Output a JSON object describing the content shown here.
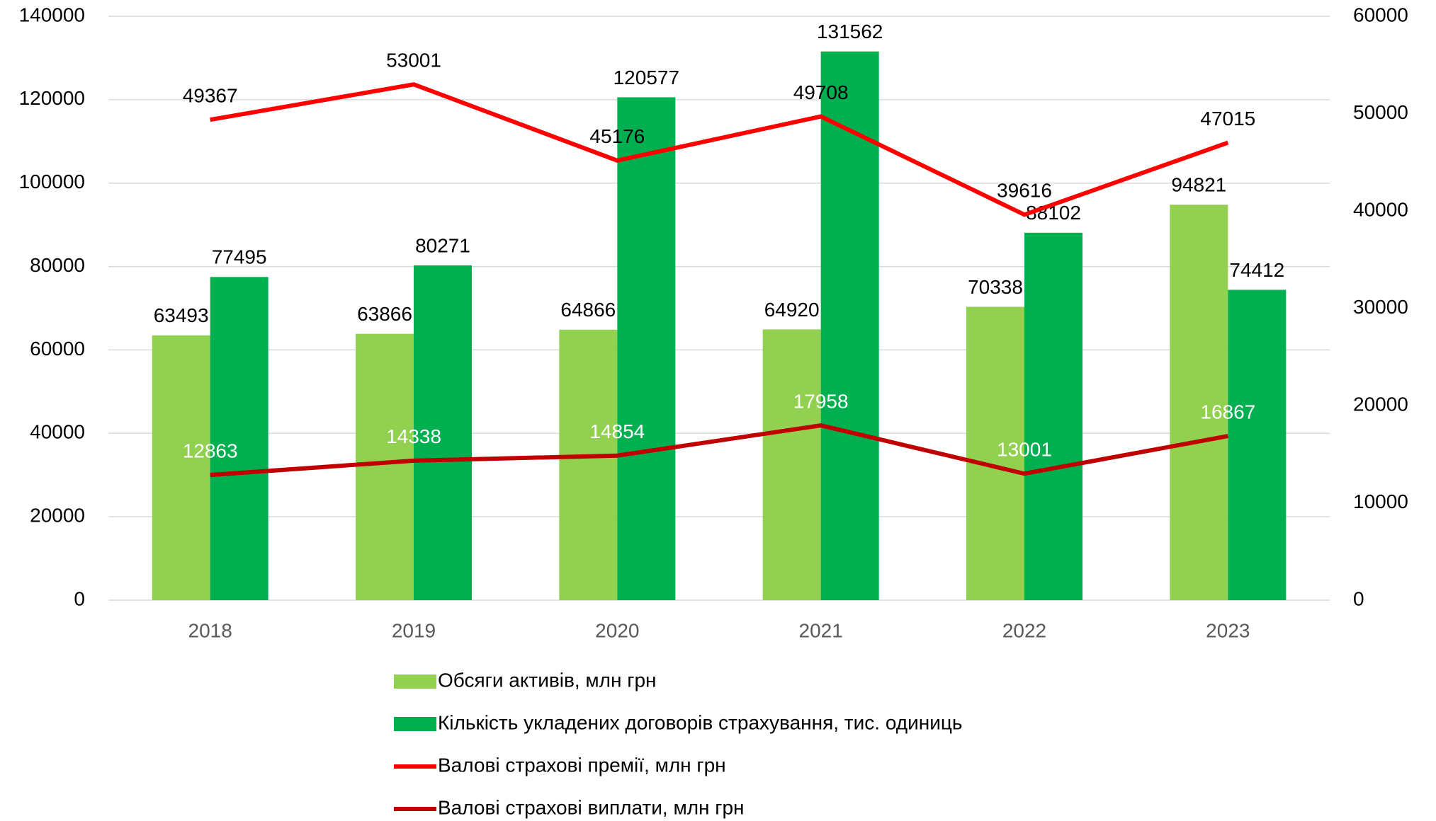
{
  "chart_data": {
    "type": "bar-line",
    "categories": [
      "2018",
      "2019",
      "2020",
      "2021",
      "2022",
      "2023"
    ],
    "series": [
      {
        "name": "Обсяги активів, млн грн",
        "type": "bar",
        "color": "#92d050",
        "values": [
          63493,
          63866,
          64866,
          64920,
          70338,
          94821
        ]
      },
      {
        "name": "Кількість укладених договорів страхування, тис. одиниць",
        "type": "bar",
        "color": "#00b050",
        "values": [
          77495,
          80271,
          120577,
          131562,
          88102,
          74412
        ]
      },
      {
        "name": "Валові страхові премії, млн грн",
        "type": "line",
        "axis": "y2",
        "color": "#ff0000",
        "values": [
          49367,
          53001,
          45176,
          49708,
          39616,
          47015
        ]
      },
      {
        "name": "Валові страхові виплати, млн грн",
        "type": "line",
        "axis": "y2",
        "color": "#c00000",
        "values": [
          12863,
          14338,
          14854,
          17958,
          13001,
          16867
        ]
      }
    ],
    "ylim": [
      0,
      140000
    ],
    "yticks": [
      0,
      20000,
      40000,
      60000,
      80000,
      100000,
      120000,
      140000
    ],
    "y2lim": [
      0,
      60000
    ],
    "y2ticks": [
      0,
      10000,
      20000,
      30000,
      40000,
      50000,
      60000
    ],
    "grid": true,
    "legend": "bottom"
  }
}
